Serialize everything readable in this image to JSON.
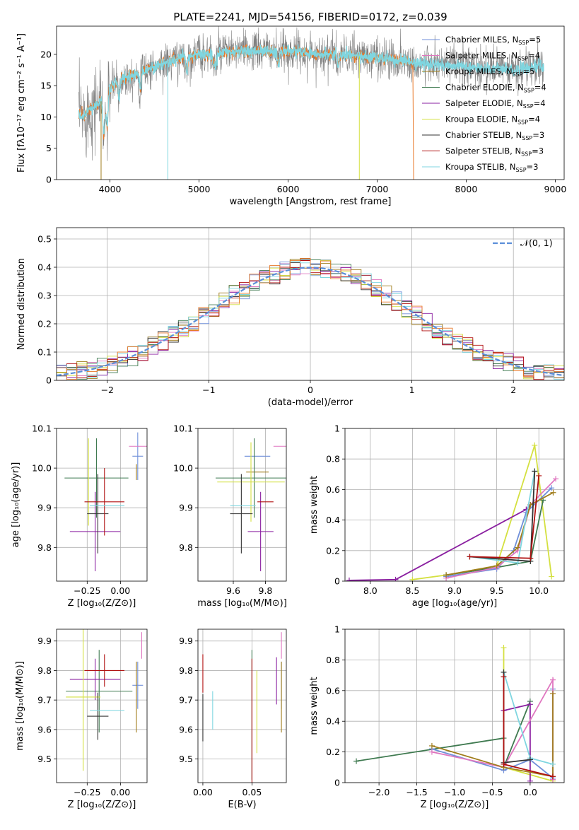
{
  "figure": {
    "title": "PLATE=2241, MJD=54156, FIBERID=0172, z=0.039"
  },
  "colors": {
    "Chabrier MILES": "#6f8fd9",
    "Salpeter MILES": "#e077c0",
    "Kroupa MILES": "#a07d1c",
    "Chabrier ELODIE": "#3f7a50",
    "Salpeter ELODIE": "#8a1fa0",
    "Kroupa ELODIE": "#d4e040",
    "Chabrier STELIB": "#333333",
    "Salpeter STELIB": "#b01010",
    "Kroupa STELIB": "#7fd6e0",
    "data": "#808080",
    "orange": "#e8792a",
    "normal": "#5b8fd9"
  },
  "chart_data": [
    {
      "id": "spectrum",
      "type": "line",
      "xlabel": "wavelength [Angstrom, rest frame]",
      "ylabel": "Flux [fλ10⁻¹⁷ erg cm⁻² s⁻¹ A⁻¹]",
      "xlim": [
        3400,
        9100
      ],
      "ylim": [
        0,
        24.5
      ],
      "xticks": [
        4000,
        5000,
        6000,
        7000,
        8000,
        9000
      ],
      "yticks": [
        0,
        5,
        10,
        15,
        20
      ],
      "grid": false,
      "legend_position": "top-right",
      "legend": [
        {
          "pre": "Chabrier MILES, N",
          "sub": "SSP",
          "post": "=5"
        },
        {
          "pre": "Salpeter MILES, N",
          "sub": "SSP",
          "post": "=4"
        },
        {
          "pre": "Kroupa MILES, N",
          "sub": "SSP",
          "post": "=5"
        },
        {
          "pre": "Chabrier ELODIE, N",
          "sub": "SSP",
          "post": "=4"
        },
        {
          "pre": "Salpeter ELODIE, N",
          "sub": "SSP",
          "post": "=4"
        },
        {
          "pre": "Kroupa ELODIE, N",
          "sub": "SSP",
          "post": "=4"
        },
        {
          "pre": "Chabrier STELIB, N",
          "sub": "SSP",
          "post": "=3"
        },
        {
          "pre": "Salpeter STELIB, N",
          "sub": "SSP",
          "post": "=3"
        },
        {
          "pre": "Kroupa STELIB, N",
          "sub": "SSP",
          "post": "=3"
        }
      ],
      "continuum": {
        "x": [
          3650,
          3700,
          3800,
          3900,
          4000,
          4100,
          4300,
          4500,
          4800,
          5000,
          5500,
          6000,
          6500,
          7000,
          7500,
          8000,
          8500,
          8800
        ],
        "y": [
          10.5,
          10,
          11.5,
          12.5,
          14.5,
          16,
          17,
          18,
          19.5,
          20,
          20.5,
          20.5,
          20,
          19.5,
          18.5,
          18,
          17.5,
          18
        ]
      },
      "model_ranges": {
        "MILES": [
          3650,
          7400
        ],
        "ELODIE": [
          3650,
          6800
        ],
        "STELIB": [
          3650,
          8870
        ]
      }
    },
    {
      "id": "residuals",
      "type": "histogram",
      "xlabel": "(data-model)/error",
      "ylabel": "Normed distribution",
      "xlim": [
        -2.5,
        2.5
      ],
      "ylim": [
        0,
        0.54
      ],
      "xticks": [
        -2,
        -1,
        0,
        1,
        2
      ],
      "xtick_labels": [
        "−2",
        "−1",
        "0",
        "1",
        "2"
      ],
      "yticks": [
        0.0,
        0.1,
        0.2,
        0.3,
        0.4,
        0.5
      ],
      "grid": true,
      "legend_position": "top-right",
      "legend": [
        "𝒩(0, 1)"
      ],
      "bin_width": 0.1
    },
    {
      "id": "age-vs-Z",
      "type": "errorbar",
      "xlabel": "Z [log₁₀(Z/Z⊙)]",
      "ylabel": "age  [log₁₀(age/yr)]",
      "xlim": [
        -0.48,
        0.2
      ],
      "ylim": [
        9.715,
        10.1
      ],
      "xticks": [
        -0.25,
        0.0
      ],
      "xtick_labels": [
        "−0.25",
        "0.00"
      ],
      "yticks": [
        9.8,
        9.9,
        10.0,
        10.1
      ],
      "ytick_labels": [
        "9.8",
        "9.9",
        "10.0",
        "10.1"
      ],
      "grid": true,
      "points": [
        {
          "model": "Chabrier MILES",
          "x": 0.13,
          "xerr": 0.04,
          "y": 10.03,
          "yerr": 0.06
        },
        {
          "model": "Salpeter MILES",
          "x": 0.16,
          "xerr": 0.0,
          "y": 10.055,
          "yerr": 0.0
        },
        {
          "model": "Kroupa MILES",
          "x": 0.12,
          "xerr": 0.0,
          "y": 9.99,
          "yerr": 0.02
        },
        {
          "model": "Chabrier ELODIE",
          "x": -0.18,
          "xerr": 0.24,
          "y": 9.975,
          "yerr": 0.1
        },
        {
          "model": "Salpeter ELODIE",
          "x": -0.19,
          "xerr": 0.19,
          "y": 9.84,
          "yerr": 0.1
        },
        {
          "model": "Kroupa ELODIE",
          "x": -0.24,
          "xerr": 0.0,
          "y": 9.965,
          "yerr": 0.11
        },
        {
          "model": "Chabrier STELIB",
          "x": -0.17,
          "xerr": 0.08,
          "y": 9.885,
          "yerr": 0.1
        },
        {
          "model": "Salpeter STELIB",
          "x": -0.12,
          "xerr": 0.15,
          "y": 9.915,
          "yerr": 0.085
        },
        {
          "model": "Kroupa STELIB",
          "x": -0.1,
          "xerr": 0.13,
          "y": 9.905,
          "yerr": 0.0
        }
      ]
    },
    {
      "id": "age-vs-mass",
      "type": "errorbar",
      "xlabel": "mass [log₁₀(M/M⊙)]",
      "ylabel": "",
      "xlim": [
        9.38,
        9.93
      ],
      "ylim": [
        9.715,
        10.1
      ],
      "xticks": [
        9.6,
        9.8
      ],
      "xtick_labels": [
        "9.6",
        "9.8"
      ],
      "yticks": [
        9.8,
        9.9,
        10.0,
        10.1
      ],
      "ytick_labels": [
        "9.8",
        "9.9",
        "10.0",
        "10.1"
      ],
      "grid": true,
      "points": [
        {
          "model": "Chabrier MILES",
          "x": 9.75,
          "xerr": 0.08,
          "y": 10.03,
          "yerr": 0.0
        },
        {
          "model": "Salpeter MILES",
          "x": 9.89,
          "xerr": 0.04,
          "y": 10.055,
          "yerr": 0.0
        },
        {
          "model": "Kroupa MILES",
          "x": 9.75,
          "xerr": 0.07,
          "y": 9.99,
          "yerr": 0.0
        },
        {
          "model": "Chabrier ELODIE",
          "x": 9.73,
          "xerr": 0.24,
          "y": 9.975,
          "yerr": 0.1
        },
        {
          "model": "Salpeter ELODIE",
          "x": 9.77,
          "xerr": 0.08,
          "y": 9.84,
          "yerr": 0.1
        },
        {
          "model": "Kroupa ELODIE",
          "x": 9.71,
          "xerr": 0.21,
          "y": 9.965,
          "yerr": 0.1
        },
        {
          "model": "Chabrier STELIB",
          "x": 9.65,
          "xerr": 0.07,
          "y": 9.885,
          "yerr": 0.1
        },
        {
          "model": "Salpeter STELIB",
          "x": 9.8,
          "xerr": 0.05,
          "y": 9.915,
          "yerr": 0.0
        },
        {
          "model": "Kroupa STELIB",
          "x": 9.66,
          "xerr": 0.0,
          "y": 9.905,
          "yerr": 0.0
        }
      ]
    },
    {
      "id": "weight-vs-age",
      "type": "line",
      "xlabel": "age  [log₁₀(age/yr)]",
      "ylabel": "mass weight",
      "xlim": [
        7.7,
        10.3
      ],
      "ylim": [
        0,
        1
      ],
      "xticks": [
        8.0,
        8.5,
        9.0,
        9.5,
        10.0
      ],
      "xtick_labels": [
        "8.0",
        "8.5",
        "9.0",
        "9.5",
        "10.0"
      ],
      "yticks": [
        0.0,
        0.2,
        0.4,
        0.6,
        0.8,
        1.0
      ],
      "grid": true,
      "series": [
        {
          "name": "Kroupa ELODIE",
          "x": [
            8.5,
            8.9,
            9.5,
            9.95,
            10.15
          ],
          "y": [
            0.01,
            0.04,
            0.1,
            0.89,
            0.03
          ]
        },
        {
          "name": "Salpeter ELODIE",
          "x": [
            7.75,
            8.3,
            9.85,
            9.9
          ],
          "y": [
            0.005,
            0.01,
            0.47,
            0.5
          ]
        },
        {
          "name": "Chabrier ELODIE",
          "x": [
            8.9,
            9.5,
            9.9,
            10.05
          ],
          "y": [
            0.04,
            0.09,
            0.13,
            0.53
          ]
        },
        {
          "name": "Chabrier MILES",
          "x": [
            8.9,
            9.5,
            9.7,
            9.85,
            10.15
          ],
          "y": [
            0.03,
            0.08,
            0.2,
            0.45,
            0.61
          ]
        },
        {
          "name": "Salpeter MILES",
          "x": [
            8.9,
            9.5,
            9.75,
            9.9,
            10.2
          ],
          "y": [
            0.02,
            0.09,
            0.2,
            0.5,
            0.67
          ]
        },
        {
          "name": "Kroupa MILES",
          "x": [
            8.9,
            9.5,
            9.75,
            9.9,
            10.17
          ],
          "y": [
            0.04,
            0.1,
            0.22,
            0.5,
            0.58
          ]
        },
        {
          "name": "Kroupa STELIB",
          "x": [
            9.18,
            9.75,
            9.95
          ],
          "y": [
            0.16,
            0.12,
            0.72
          ]
        },
        {
          "name": "Chabrier STELIB",
          "x": [
            9.18,
            9.9,
            9.95
          ],
          "y": [
            0.16,
            0.13,
            0.72
          ]
        },
        {
          "name": "Salpeter STELIB",
          "x": [
            9.18,
            9.9,
            10.0
          ],
          "y": [
            0.16,
            0.15,
            0.69
          ]
        }
      ]
    },
    {
      "id": "mass-vs-Z",
      "type": "errorbar",
      "xlabel": "Z [log₁₀(Z/Z⊙)]",
      "ylabel": "mass [log₁₀(M/M⊙)]",
      "xlim": [
        -0.48,
        0.2
      ],
      "ylim": [
        9.42,
        9.94
      ],
      "xticks": [
        -0.25,
        0.0
      ],
      "xtick_labels": [
        "−0.25",
        "0.00"
      ],
      "yticks": [
        9.5,
        9.6,
        9.7,
        9.8,
        9.9
      ],
      "ytick_labels": [
        "9.5",
        "9.6",
        "9.7",
        "9.8",
        "9.9"
      ],
      "grid": true,
      "points": [
        {
          "model": "Chabrier MILES",
          "x": 0.13,
          "xerr": 0.04,
          "y": 9.75,
          "yerr": 0.08
        },
        {
          "model": "Salpeter MILES",
          "x": 0.16,
          "xerr": 0.0,
          "y": 9.885,
          "yerr": 0.045
        },
        {
          "model": "Kroupa MILES",
          "x": 0.12,
          "xerr": 0.0,
          "y": 9.71,
          "yerr": 0.12
        },
        {
          "model": "Chabrier ELODIE",
          "x": -0.16,
          "xerr": 0.25,
          "y": 9.73,
          "yerr": 0.14
        },
        {
          "model": "Salpeter ELODIE",
          "x": -0.19,
          "xerr": 0.19,
          "y": 9.77,
          "yerr": 0.07
        },
        {
          "model": "Kroupa ELODIE",
          "x": -0.28,
          "xerr": 0.13,
          "y": 9.71,
          "yerr": 0.25
        },
        {
          "model": "Chabrier STELIB",
          "x": -0.17,
          "xerr": 0.08,
          "y": 9.645,
          "yerr": 0.08
        },
        {
          "model": "Salpeter STELIB",
          "x": -0.12,
          "xerr": 0.15,
          "y": 9.8,
          "yerr": 0.055
        },
        {
          "model": "Kroupa STELIB",
          "x": -0.1,
          "xerr": 0.13,
          "y": 9.665,
          "yerr": 0.0
        }
      ]
    },
    {
      "id": "mass-vs-ebv",
      "type": "errorbar",
      "xlabel": "E(B-V)",
      "ylabel": "",
      "xlim": [
        -0.005,
        0.085
      ],
      "ylim": [
        9.42,
        9.94
      ],
      "xticks": [
        0.0,
        0.05
      ],
      "xtick_labels": [
        "0.00",
        "0.05"
      ],
      "yticks": [
        9.5,
        9.6,
        9.7,
        9.8,
        9.9
      ],
      "ytick_labels": [
        "9.5",
        "9.6",
        "9.7",
        "9.8",
        "9.9"
      ],
      "grid": true,
      "points": [
        {
          "model": "Chabrier MILES",
          "x": 0.08,
          "xerr": 0.0,
          "y": 9.75,
          "yerr": 0.08
        },
        {
          "model": "Salpeter MILES",
          "x": 0.08,
          "xerr": 0.0,
          "y": 9.885,
          "yerr": 0.045
        },
        {
          "model": "Kroupa MILES",
          "x": 0.08,
          "xerr": 0.0,
          "y": 9.71,
          "yerr": 0.12
        },
        {
          "model": "Chabrier ELODIE",
          "x": 0.05,
          "xerr": 0.0,
          "y": 9.65,
          "yerr": 0.22
        },
        {
          "model": "Salpeter ELODIE",
          "x": 0.075,
          "xerr": 0.0,
          "y": 9.765,
          "yerr": 0.08
        },
        {
          "model": "Kroupa ELODIE",
          "x": 0.055,
          "xerr": 0.0,
          "y": 9.66,
          "yerr": 0.14
        },
        {
          "model": "Chabrier STELIB",
          "x": 0.0,
          "xerr": 0.0,
          "y": 9.64,
          "yerr": 0.08
        },
        {
          "model": "Salpeter STELIB",
          "x": 0.0,
          "xerr": 0.0,
          "y": 9.79,
          "yerr": 0.065
        },
        {
          "model": "Kroupa STELIB",
          "x": 0.01,
          "xerr": 0.0,
          "y": 9.665,
          "yerr": 0.065
        },
        {
          "model": "Salpeter STELIB",
          "x": 0.05,
          "xerr": 0.0,
          "y": 9.63,
          "yerr": 0.21
        }
      ]
    },
    {
      "id": "weight-vs-Z",
      "type": "line",
      "xlabel": "Z [log₁₀(Z/Z⊙)]",
      "ylabel": "mass weight",
      "xlim": [
        -2.45,
        0.45
      ],
      "ylim": [
        0,
        1
      ],
      "xticks": [
        -2.0,
        -1.5,
        -1.0,
        -0.5,
        0.0
      ],
      "xtick_labels": [
        "−2.0",
        "−1.5",
        "−1.0",
        "−0.5",
        "0.0"
      ],
      "yticks": [
        0.0,
        0.2,
        0.4,
        0.6,
        0.8,
        1.0
      ],
      "grid": true,
      "series": [
        {
          "name": "Chabrier ELODIE",
          "x": [
            -2.3,
            -0.35,
            -0.35,
            0.0
          ],
          "y": [
            0.14,
            0.29,
            0.1,
            0.53
          ]
        },
        {
          "name": "Kroupa ELODIE",
          "x": [
            -0.35,
            -0.35,
            -0.35,
            0.3
          ],
          "y": [
            0.88,
            0.1,
            0.1,
            0.01
          ]
        },
        {
          "name": "Salpeter ELODIE",
          "x": [
            -0.35,
            0.0,
            0.0
          ],
          "y": [
            0.47,
            0.51,
            0.01
          ]
        },
        {
          "name": "Chabrier MILES",
          "x": [
            -1.3,
            -0.35,
            0.0,
            0.3,
            0.3
          ],
          "y": [
            0.22,
            0.08,
            0.15,
            0.03,
            0.61
          ]
        },
        {
          "name": "Salpeter MILES",
          "x": [
            -1.3,
            -0.35,
            0.3,
            0.3
          ],
          "y": [
            0.2,
            0.1,
            0.67,
            0.02
          ]
        },
        {
          "name": "Kroupa MILES",
          "x": [
            -1.3,
            -0.35,
            0.3,
            0.3
          ],
          "y": [
            0.24,
            0.1,
            0.04,
            0.58
          ]
        },
        {
          "name": "Kroupa STELIB",
          "x": [
            -0.35,
            0.0,
            0.3
          ],
          "y": [
            0.72,
            0.16,
            0.12
          ]
        },
        {
          "name": "Chabrier STELIB",
          "x": [
            -0.35,
            -0.35,
            0.0
          ],
          "y": [
            0.72,
            0.13,
            0.15
          ]
        },
        {
          "name": "Salpeter STELIB",
          "x": [
            -0.35,
            -0.35,
            0.3
          ],
          "y": [
            0.69,
            0.12,
            0.04
          ]
        }
      ]
    }
  ]
}
